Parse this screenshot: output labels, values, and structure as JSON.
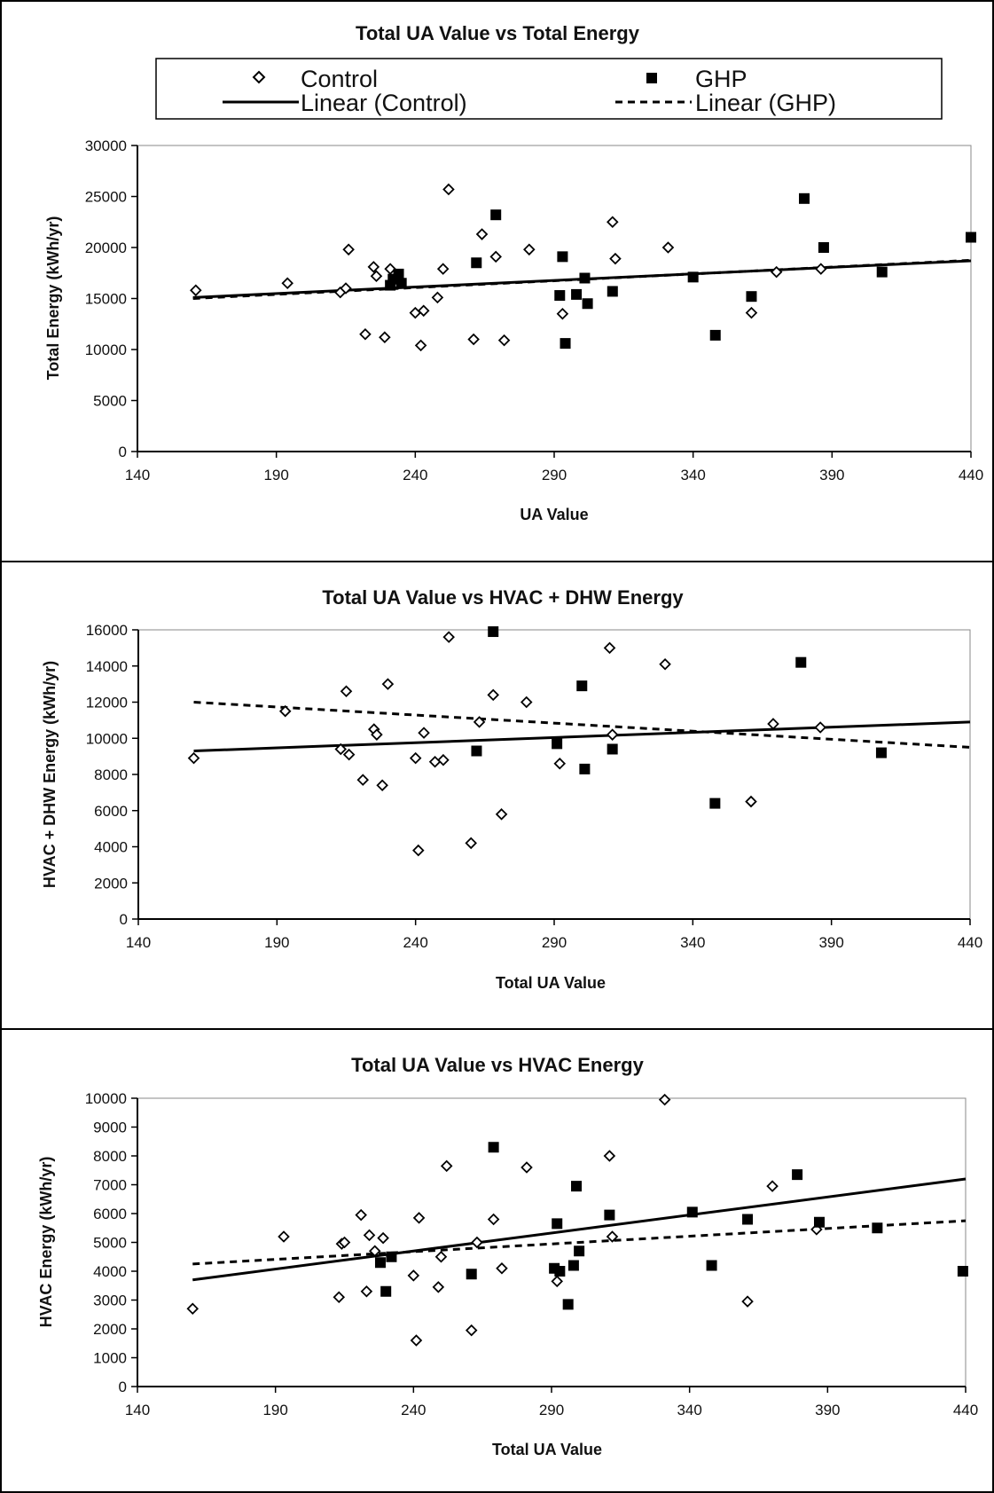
{
  "chart_data": [
    {
      "type": "scatter",
      "title": "Total UA Value vs Total Energy",
      "xlabel": "UA Value",
      "ylabel": "Total Energy (kWh/yr)",
      "xlim": [
        140,
        440
      ],
      "ylim": [
        0,
        30000
      ],
      "x_ticks": [
        "140",
        "190",
        "240",
        "290",
        "340",
        "390",
        "440"
      ],
      "y_ticks": [
        "0",
        "5000",
        "10000",
        "15000",
        "20000",
        "25000",
        "30000"
      ],
      "grid": false,
      "legend_position": "top",
      "legend": {
        "control": "Control",
        "ghp": "GHP",
        "linear_control": "Linear (Control)",
        "linear_ghp": "Linear (GHP)"
      },
      "series": [
        {
          "name": "Control",
          "marker": "diamond",
          "points": [
            [
              161,
              15800
            ],
            [
              194,
              16500
            ],
            [
              213,
              15600
            ],
            [
              215,
              16000
            ],
            [
              216,
              19800
            ],
            [
              222,
              11500
            ],
            [
              225,
              18100
            ],
            [
              226,
              17200
            ],
            [
              229,
              11200
            ],
            [
              231,
              17900
            ],
            [
              240,
              13600
            ],
            [
              242,
              10400
            ],
            [
              243,
              13800
            ],
            [
              248,
              15100
            ],
            [
              250,
              17900
            ],
            [
              252,
              25700
            ],
            [
              261,
              11000
            ],
            [
              264,
              21300
            ],
            [
              269,
              19100
            ],
            [
              272,
              10900
            ],
            [
              281,
              19800
            ],
            [
              293,
              13500
            ],
            [
              311,
              22500
            ],
            [
              312,
              18900
            ],
            [
              331,
              20000
            ],
            [
              361,
              13600
            ],
            [
              370,
              17600
            ],
            [
              386,
              17900
            ]
          ]
        },
        {
          "name": "GHP",
          "marker": "square",
          "points": [
            [
              231,
              16300
            ],
            [
              232,
              16900
            ],
            [
              234,
              17400
            ],
            [
              235,
              16500
            ],
            [
              262,
              18500
            ],
            [
              269,
              23200
            ],
            [
              292,
              15300
            ],
            [
              293,
              19100
            ],
            [
              294,
              10600
            ],
            [
              298,
              15400
            ],
            [
              301,
              17000
            ],
            [
              302,
              14500
            ],
            [
              311,
              15700
            ],
            [
              340,
              17100
            ],
            [
              348,
              11400
            ],
            [
              361,
              15200
            ],
            [
              380,
              24800
            ],
            [
              387,
              20000
            ],
            [
              408,
              17600
            ],
            [
              440,
              21000
            ]
          ]
        },
        {
          "name": "Linear (Control)",
          "type": "line",
          "points": [
            [
              160,
              15100
            ],
            [
              440,
              18700
            ]
          ]
        },
        {
          "name": "Linear (GHP)",
          "type": "dashed",
          "points": [
            [
              160,
              15000
            ],
            [
              440,
              18750
            ]
          ]
        }
      ]
    },
    {
      "type": "scatter",
      "title": "Total UA Value vs HVAC + DHW Energy",
      "xlabel": "Total UA Value",
      "ylabel": "HVAC + DHW Energy (kWh/yr)",
      "xlim": [
        140,
        440
      ],
      "ylim": [
        0,
        16000
      ],
      "x_ticks": [
        "140",
        "190",
        "240",
        "290",
        "340",
        "390",
        "440"
      ],
      "y_ticks": [
        "0",
        "2000",
        "4000",
        "6000",
        "8000",
        "10000",
        "12000",
        "14000",
        "16000"
      ],
      "grid": false,
      "series": [
        {
          "name": "Control",
          "marker": "diamond",
          "points": [
            [
              160,
              8900
            ],
            [
              193,
              11500
            ],
            [
              213,
              9400
            ],
            [
              215,
              12600
            ],
            [
              216,
              9100
            ],
            [
              221,
              7700
            ],
            [
              225,
              10500
            ],
            [
              226,
              10200
            ],
            [
              228,
              7400
            ],
            [
              230,
              13000
            ],
            [
              240,
              8900
            ],
            [
              241,
              3800
            ],
            [
              243,
              10300
            ],
            [
              247,
              8700
            ],
            [
              250,
              8800
            ],
            [
              252,
              15600
            ],
            [
              260,
              4200
            ],
            [
              263,
              10900
            ],
            [
              268,
              12400
            ],
            [
              271,
              5800
            ],
            [
              280,
              12000
            ],
            [
              292,
              8600
            ],
            [
              310,
              15000
            ],
            [
              311,
              10200
            ],
            [
              330,
              14100
            ],
            [
              361,
              6500
            ],
            [
              369,
              10800
            ],
            [
              386,
              10600
            ]
          ]
        },
        {
          "name": "GHP",
          "marker": "square",
          "points": [
            [
              262,
              9300
            ],
            [
              268,
              15900
            ],
            [
              291,
              9700
            ],
            [
              300,
              12900
            ],
            [
              301,
              8300
            ],
            [
              311,
              9400
            ],
            [
              348,
              6400
            ],
            [
              379,
              14200
            ],
            [
              408,
              9200
            ]
          ]
        },
        {
          "name": "Linear (Control)",
          "type": "line",
          "points": [
            [
              160,
              9300
            ],
            [
              440,
              10900
            ]
          ]
        },
        {
          "name": "Linear (GHP)",
          "type": "dashed",
          "points": [
            [
              160,
              12000
            ],
            [
              440,
              9500
            ]
          ]
        }
      ]
    },
    {
      "type": "scatter",
      "title": "Total UA Value vs HVAC Energy",
      "xlabel": "Total UA Value",
      "ylabel": "HVAC Energy (kWh/yr)",
      "xlim": [
        140,
        440
      ],
      "ylim": [
        0,
        10000
      ],
      "x_ticks": [
        "140",
        "190",
        "240",
        "290",
        "340",
        "390",
        "440"
      ],
      "y_ticks": [
        "0",
        "1000",
        "2000",
        "3000",
        "4000",
        "5000",
        "6000",
        "7000",
        "8000",
        "9000",
        "10000"
      ],
      "grid": false,
      "series": [
        {
          "name": "Control",
          "marker": "diamond",
          "points": [
            [
              160,
              2700
            ],
            [
              193,
              5200
            ],
            [
              213,
              3100
            ],
            [
              214,
              4950
            ],
            [
              215,
              5000
            ],
            [
              221,
              5950
            ],
            [
              223,
              3300
            ],
            [
              224,
              5250
            ],
            [
              226,
              4700
            ],
            [
              229,
              5150
            ],
            [
              240,
              3850
            ],
            [
              241,
              1600
            ],
            [
              242,
              5850
            ],
            [
              249,
              3450
            ],
            [
              250,
              4500
            ],
            [
              252,
              7650
            ],
            [
              261,
              1950
            ],
            [
              263,
              5000
            ],
            [
              269,
              5800
            ],
            [
              272,
              4100
            ],
            [
              281,
              7600
            ],
            [
              292,
              3650
            ],
            [
              311,
              8000
            ],
            [
              312,
              5200
            ],
            [
              331,
              9950
            ],
            [
              361,
              2950
            ],
            [
              370,
              6950
            ],
            [
              386,
              5450
            ]
          ]
        },
        {
          "name": "GHP",
          "marker": "square",
          "points": [
            [
              228,
              4300
            ],
            [
              230,
              3300
            ],
            [
              232,
              4500
            ],
            [
              261,
              3900
            ],
            [
              269,
              8300
            ],
            [
              291,
              4100
            ],
            [
              292,
              5650
            ],
            [
              293,
              4000
            ],
            [
              296,
              2850
            ],
            [
              298,
              4200
            ],
            [
              299,
              6950
            ],
            [
              300,
              4700
            ],
            [
              311,
              5950
            ],
            [
              341,
              6050
            ],
            [
              348,
              4200
            ],
            [
              361,
              5800
            ],
            [
              379,
              7350
            ],
            [
              387,
              5700
            ],
            [
              408,
              5500
            ],
            [
              439,
              4000
            ]
          ]
        },
        {
          "name": "Linear (Control)",
          "type": "line",
          "points": [
            [
              160,
              3700
            ],
            [
              440,
              7200
            ]
          ]
        },
        {
          "name": "Linear (GHP)",
          "type": "dashed",
          "points": [
            [
              160,
              4250
            ],
            [
              440,
              5750
            ]
          ]
        }
      ]
    }
  ]
}
